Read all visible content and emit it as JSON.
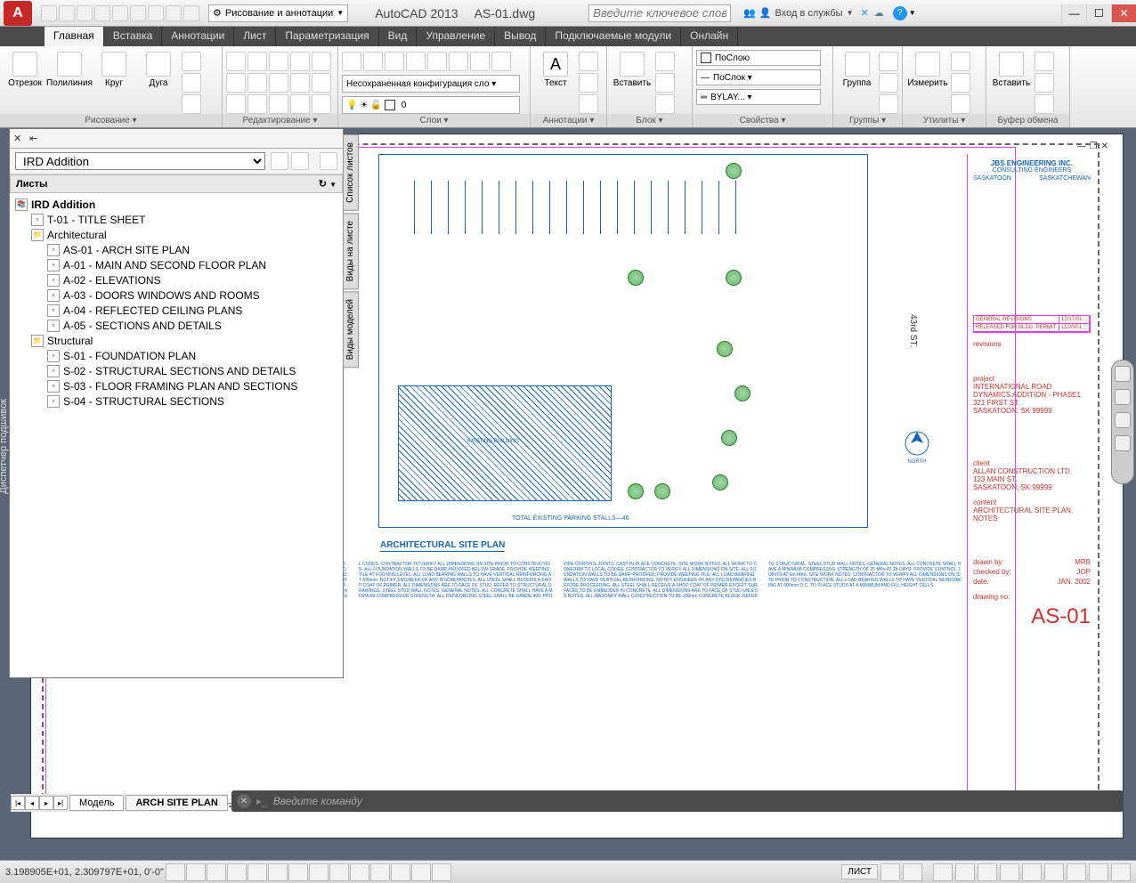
{
  "app": {
    "logo_letter": "A",
    "name": "AutoCAD 2013",
    "filename": "AS-01.dwg",
    "workspace": "Рисование и аннотации"
  },
  "titlebar": {
    "search_placeholder": "Введите ключевое слово/фразу",
    "login": "Вход в службы",
    "minimize": "—",
    "maximize": "☐",
    "close": "✕"
  },
  "tabs": {
    "items": [
      "Главная",
      "Вставка",
      "Аннотации",
      "Лист",
      "Параметризация",
      "Вид",
      "Управление",
      "Вывод",
      "Подключаемые модули",
      "Онлайн"
    ],
    "active": 0
  },
  "ribbon": {
    "draw": {
      "title": "Рисование ▾",
      "line": "Отрезок",
      "polyline": "Полилиния",
      "circle": "Круг",
      "arc": "Дуга"
    },
    "modify": {
      "title": "Редактирование ▾"
    },
    "layers": {
      "title": "Слои ▾",
      "combo": "Несохраненная конфигурация сло ▾"
    },
    "annot": {
      "title": "Аннотации ▾",
      "text": "Текст"
    },
    "block": {
      "title": "Блок ▾",
      "insert": "Вставить"
    },
    "props": {
      "title": "Свойства ▾",
      "bylayer": "ПоСлою",
      "bylayer2": "ПоСлок ▾",
      "bylayer3": "BYLAY... ▾"
    },
    "groups": {
      "title": "Группы ▾",
      "group": "Группа"
    },
    "utils": {
      "title": "Утилиты ▾",
      "measure": "Измерить"
    },
    "clip": {
      "title": "Буфер обмена",
      "paste": "Вставить"
    }
  },
  "palette": {
    "combo": "IRD Addition",
    "vertical_tabs": [
      "Список листов",
      "Виды на листе",
      "Виды моделей"
    ],
    "section": "Листы",
    "side_title": "Диспетчер подшивок",
    "tree": [
      {
        "lvl": 0,
        "icon": "📚",
        "label": "IRD Addition"
      },
      {
        "lvl": 1,
        "icon": "▫",
        "label": "T-01 - TITLE SHEET"
      },
      {
        "lvl": 1,
        "icon": "📁",
        "label": "Architectural"
      },
      {
        "lvl": 2,
        "icon": "▫",
        "label": "AS-01 - ARCH SITE PLAN"
      },
      {
        "lvl": 2,
        "icon": "▫",
        "label": "A-01 - MAIN AND SECOND FLOOR PLAN"
      },
      {
        "lvl": 2,
        "icon": "▫",
        "label": "A-02 - ELEVATIONS"
      },
      {
        "lvl": 2,
        "icon": "▫",
        "label": "A-03 - DOORS WINDOWS AND ROOMS"
      },
      {
        "lvl": 2,
        "icon": "▫",
        "label": "A-04 - REFLECTED CEILING PLANS"
      },
      {
        "lvl": 2,
        "icon": "▫",
        "label": "A-05 - SECTIONS AND DETAILS"
      },
      {
        "lvl": 1,
        "icon": "📁",
        "label": "Structural"
      },
      {
        "lvl": 2,
        "icon": "▫",
        "label": "S-01 - FOUNDATION PLAN"
      },
      {
        "lvl": 2,
        "icon": "▫",
        "label": "S-02 - STRUCTURAL SECTIONS AND DETAILS"
      },
      {
        "lvl": 2,
        "icon": "▫",
        "label": "S-03 - FLOOR FRAMING PLAN AND SECTIONS"
      },
      {
        "lvl": 2,
        "icon": "▫",
        "label": "S-04 - STRUCTURAL SECTIONS"
      }
    ]
  },
  "drawing": {
    "colors": {
      "viewport_border": "#1565c0",
      "magenta": "#e040fb",
      "red": "#d32f2f",
      "green": "#2e7d32"
    },
    "street": "43rd ST.",
    "north_label": "NORTH",
    "plan_title": "ARCHITECTURAL SITE PLAN",
    "parking_note": "TOTAL EXISTING PARKING STALLS—46",
    "bldg_label": "EXISTING BUILDING",
    "titleblock": {
      "company": "JBS ENGINEERING INC.",
      "subtitle": "CONSULTING ENGINEERS",
      "city": "SASKATOON",
      "prov": "SASKATCHEWAN",
      "revisions_label": "revisions",
      "rev1": {
        "desc": "GENERAL REVISIONS",
        "date": "12/17/01"
      },
      "rev2": {
        "desc": "RELEASED FOR BLDG. PERMIT",
        "date": "11/20/01"
      },
      "project_label": "project",
      "project": "INTERNATIONAL ROAD DYNAMICS ADDITION - PHASE1",
      "project_addr": "321 FIRST ST.",
      "project_city": "SASKATOON,  SK  99999",
      "client_label": "client",
      "client": "ALLAN CONSTRUCTION LTD.",
      "client_addr": "123 MAIN ST.",
      "client_city": "SASKATOON,  SK  99999",
      "content_label": "content",
      "content": "ARCHITECTURAL SITE PLAN, NOTES",
      "drawn_label": "drawn by:",
      "drawn": "MRB",
      "checked_label": "checked by:",
      "checked": "JOP",
      "date_label": "date:",
      "date": "JAN. 2002",
      "dwgno_label": "drawing no.",
      "sheet": "AS-01"
    },
    "notes_filler": "ALL STEEL SHALL RECEIVE A SHOP COAT OF PRIMER EXCEPT SURFACES TO BE EMBEDDED IN CONCRETE. ALL DIMENSIONS ARE TO FACE OF STUD UNLESS NOTED. ALL MASONRY WALL CONSTRUCTION TO BE 200mm CONCRETE BLOCK. REFER TO STRUCTURAL DRAWINGS FOR REINFORCING AND GROUTING. STEEL STUD WALL NOTES. GENERAL NOTES. ALL CONCRETE SHALL HAVE A MINIMUM COMPRESSIVE STRENGTH OF 25 MPa AT 28 DAYS. ALL REINFORCING STEEL SHALL BE GRADE 400. PROVIDE CONTROL JOINTS AT 6m MAX. CAST-IN-PLACE CONCRETE. SITE WORK NOTES. ALL WORK TO CONFORM TO LOCAL CODES. CONTRACTOR TO VERIFY ALL DIMENSIONS ON SITE PRIOR TO CONSTRUCTION. ALL FOUNDATION WALLS TO BE DAMP-PROOFED BELOW GRADE. PROVIDE WEEPING TILE AT FOOTING LEVEL. ALL LOAD BEARING WALLS TO HAVE VERTICAL REINFORCING AT 600mm. NOTIFY ENGINEER OF ANY DISCREPANCIES. ALL STEEL SHALL RECEIVE A SHOP COAT OF PRIMER. ALL DIMENSIONS ARE TO FACE OF STUD. REFER TO STRUCTURAL DRAWINGS. STEEL STUD WALL NOTES. GENERAL NOTES. ALL CONCRETE SHALL HAVE A MINIMUM COMPRESSIVE STRENGTH. ALL REINFORCING STEEL SHALL BE GRADE 400. PROVIDE CONTROL JOINTS. CAST-IN-PLACE CONCRETE. SITE WORK NOTES. ALL WORK TO CONFORM TO LOCAL CODES. CONTRACTOR TO VERIFY ALL DIMENSIONS ON SITE. ALL FOUNDATION WALLS TO BE DAMP-PROOFED. PROVIDE WEEPING TILE. ALL LOAD BEARING WALLS TO HAVE VERTICAL REINFORCING. NOTIFY ENGINEER OF ANY DISCREPANCIES BEFORE PROCEEDING. ALL STEEL SHALL RECEIVE A SHOP COAT OF PRIMER EXCEPT SURFACES TO BE EMBEDDED IN CONCRETE. ALL DIMENSIONS ARE TO FACE OF STUD UNLESS NOTED. ALL MASONRY WALL CONSTRUCTION TO BE 200mm CONCRETE BLOCK. REFER TO STRUCTURAL. STEEL STUD WALL NOTES. GENERAL NOTES. ALL CONCRETE SHALL HAVE A MINIMUM COMPRESSIVE STRENGTH OF 25 MPa AT 28 DAYS. PROVIDE CONTROL JOINTS AT 6m MAX. SITE WORK NOTES. CONTRACTOR TO VERIFY ALL DIMENSIONS ON SITE PRIOR TO CONSTRUCTION. ALL LOAD BEARING WALLS TO HAVE VERTICAL REINFORCING AT 600mm O.C. TO PLACE STUDS AT A MINIMUM AND FILL HEIGHT CELLS."
  },
  "layout_tabs": {
    "model": "Модель",
    "layout1": "ARCH SITE PLAN"
  },
  "cmdline": {
    "placeholder": "Введите команду"
  },
  "statusbar": {
    "coords": "3.198905E+01, 2.309797E+01, 0'-0\"",
    "sheet_btn": "ЛИСТ"
  }
}
